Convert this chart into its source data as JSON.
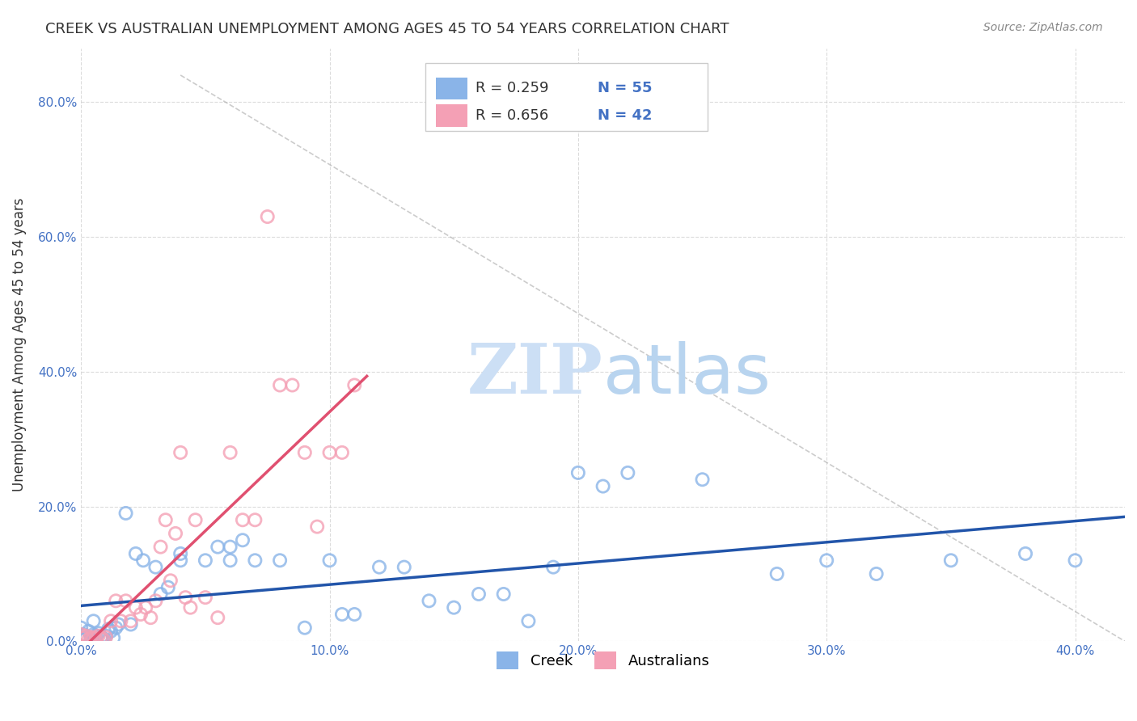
{
  "title": "CREEK VS AUSTRALIAN UNEMPLOYMENT AMONG AGES 45 TO 54 YEARS CORRELATION CHART",
  "source": "Source: ZipAtlas.com",
  "xlabel": "",
  "ylabel": "Unemployment Among Ages 45 to 54 years",
  "xlim": [
    0.0,
    0.42
  ],
  "ylim": [
    0.0,
    0.88
  ],
  "xticks": [
    0.0,
    0.1,
    0.2,
    0.3,
    0.4
  ],
  "yticks": [
    0.0,
    0.2,
    0.4,
    0.6,
    0.8
  ],
  "xtick_labels": [
    "0.0%",
    "10.0%",
    "20.0%",
    "30.0%",
    "40.0%"
  ],
  "ytick_labels": [
    "0.0%",
    "20.0%",
    "40.0%",
    "60.0%",
    "80.0%"
  ],
  "background_color": "#ffffff",
  "grid_color": "#cccccc",
  "creek_color": "#8ab4e8",
  "australian_color": "#f4a0b5",
  "creek_R": 0.259,
  "creek_N": 55,
  "australian_R": 0.656,
  "australian_N": 42,
  "creek_scatter_x": [
    0.0,
    0.001,
    0.002,
    0.003,
    0.004,
    0.005,
    0.006,
    0.007,
    0.008,
    0.009,
    0.01,
    0.011,
    0.012,
    0.013,
    0.014,
    0.015,
    0.018,
    0.02,
    0.022,
    0.025,
    0.03,
    0.032,
    0.035,
    0.04,
    0.04,
    0.05,
    0.055,
    0.06,
    0.06,
    0.065,
    0.07,
    0.08,
    0.09,
    0.1,
    0.105,
    0.11,
    0.12,
    0.13,
    0.14,
    0.15,
    0.16,
    0.17,
    0.18,
    0.19,
    0.2,
    0.21,
    0.22,
    0.25,
    0.28,
    0.3,
    0.32,
    0.35,
    0.38,
    0.4,
    0.005
  ],
  "creek_scatter_y": [
    0.02,
    0.01,
    0.005,
    0.015,
    0.005,
    0.01,
    0.008,
    0.012,
    0.006,
    0.004,
    0.008,
    0.018,
    0.015,
    0.005,
    0.02,
    0.025,
    0.19,
    0.025,
    0.13,
    0.12,
    0.11,
    0.07,
    0.08,
    0.12,
    0.13,
    0.12,
    0.14,
    0.14,
    0.12,
    0.15,
    0.12,
    0.12,
    0.02,
    0.12,
    0.04,
    0.04,
    0.11,
    0.11,
    0.06,
    0.05,
    0.07,
    0.07,
    0.03,
    0.11,
    0.25,
    0.23,
    0.25,
    0.24,
    0.1,
    0.12,
    0.1,
    0.12,
    0.13,
    0.12,
    0.03
  ],
  "australian_scatter_x": [
    0.0,
    0.001,
    0.002,
    0.003,
    0.004,
    0.005,
    0.006,
    0.007,
    0.008,
    0.009,
    0.01,
    0.012,
    0.014,
    0.016,
    0.018,
    0.02,
    0.022,
    0.024,
    0.026,
    0.028,
    0.03,
    0.032,
    0.034,
    0.036,
    0.038,
    0.04,
    0.042,
    0.044,
    0.046,
    0.05,
    0.055,
    0.06,
    0.065,
    0.07,
    0.075,
    0.08,
    0.085,
    0.09,
    0.095,
    0.1,
    0.105,
    0.11
  ],
  "australian_scatter_y": [
    0.01,
    0.005,
    0.008,
    0.003,
    0.006,
    0.005,
    0.004,
    0.008,
    0.005,
    0.003,
    0.006,
    0.03,
    0.06,
    0.03,
    0.06,
    0.03,
    0.05,
    0.04,
    0.05,
    0.035,
    0.06,
    0.14,
    0.18,
    0.09,
    0.16,
    0.28,
    0.065,
    0.05,
    0.18,
    0.065,
    0.035,
    0.28,
    0.18,
    0.18,
    0.63,
    0.38,
    0.38,
    0.28,
    0.17,
    0.28,
    0.28,
    0.38
  ],
  "creek_line_color": "#2255aa",
  "australian_line_color": "#e05070",
  "ref_line_color": "#aaaaaa",
  "watermark_zip_color": "#ccdff5",
  "watermark_atlas_color": "#b8d4ef"
}
